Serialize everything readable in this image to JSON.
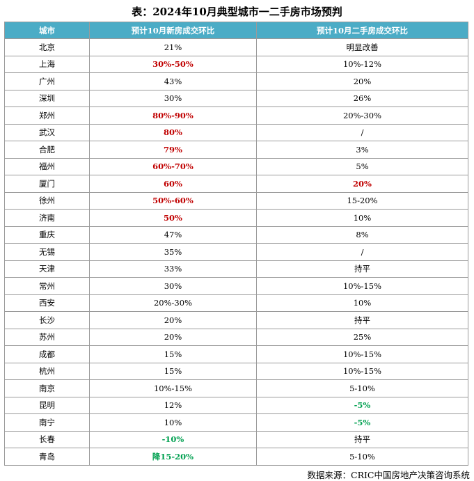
{
  "title": "表：2024年10月典型城市一二手房市场预判",
  "table": {
    "header": [
      "城市",
      "预计10月新房成交环比",
      "预计10月二手房成交环比"
    ],
    "rows": [
      [
        "北京",
        "21%",
        "明显改善"
      ],
      [
        "上海",
        {
          "text": "30%-50%",
          "color": "#c00000"
        },
        "10%-12%"
      ],
      [
        "广州",
        "43%",
        "20%"
      ],
      [
        "深圳",
        "30%",
        "26%"
      ],
      [
        "郑州",
        {
          "text": "80%-90%",
          "color": "#c00000"
        },
        "20%-30%"
      ],
      [
        "武汉",
        {
          "text": "80%",
          "color": "#c00000"
        },
        "/"
      ],
      [
        "合肥",
        {
          "text": "79%",
          "color": "#c00000"
        },
        "3%"
      ],
      [
        "福州",
        {
          "text": "60%-70%",
          "color": "#c00000"
        },
        "5%"
      ],
      [
        "厦门",
        {
          "text": "60%",
          "color": "#c00000"
        },
        {
          "text": "20%",
          "color": "#c00000"
        }
      ],
      [
        "徐州",
        {
          "text": "50%-60%",
          "color": "#c00000"
        },
        "15-20%"
      ],
      [
        "济南",
        {
          "text": "50%",
          "color": "#c00000"
        },
        "10%"
      ],
      [
        "重庆",
        "47%",
        "8%"
      ],
      [
        "无锡",
        "35%",
        "/"
      ],
      [
        "天津",
        "33%",
        "持平"
      ],
      [
        "常州",
        "30%",
        "10%-15%"
      ],
      [
        "西安",
        "20%-30%",
        "10%"
      ],
      [
        "长沙",
        "20%",
        "持平"
      ],
      [
        "苏州",
        "20%",
        "25%"
      ],
      [
        "成都",
        "15%",
        "10%-15%"
      ],
      [
        "杭州",
        "15%",
        "10%-15%"
      ],
      [
        "南京",
        "10%-15%",
        "5-10%"
      ],
      [
        "昆明",
        "12%",
        {
          "text": "-5%",
          "color": "#00a050"
        }
      ],
      [
        "南宁",
        "10%",
        {
          "text": "-5%",
          "color": "#00a050"
        }
      ],
      [
        "长春",
        {
          "text": "-10%",
          "color": "#00a050"
        },
        "持平"
      ],
      [
        "青岛",
        {
          "text": "降15-20%",
          "color": "#00a050"
        },
        "5-10%"
      ]
    ]
  },
  "source": "数据来源：CRIC中国房地产决策咨询系统"
}
